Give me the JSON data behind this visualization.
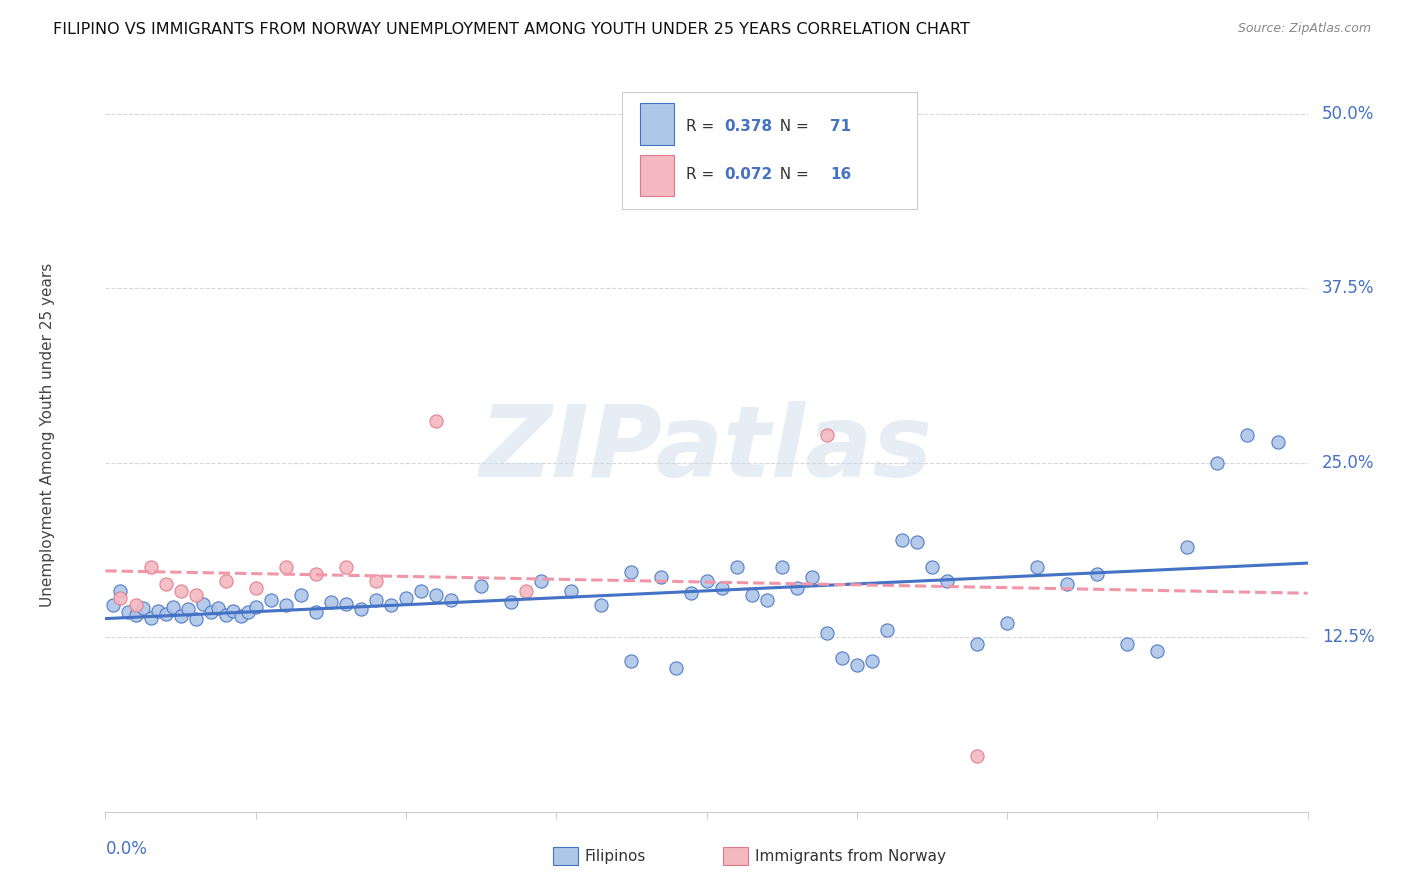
{
  "title": "FILIPINO VS IMMIGRANTS FROM NORWAY UNEMPLOYMENT AMONG YOUTH UNDER 25 YEARS CORRELATION CHART",
  "source": "Source: ZipAtlas.com",
  "ylabel": "Unemployment Among Youth under 25 years",
  "ytick_vals": [
    0.125,
    0.25,
    0.375,
    0.5
  ],
  "ytick_labels": [
    "12.5%",
    "25.0%",
    "37.5%",
    "50.0%"
  ],
  "xlim": [
    0.0,
    0.08
  ],
  "ylim": [
    0.0,
    0.54
  ],
  "filipinos_color": "#aec6e8",
  "filipinos_edge_color": "#4472c4",
  "norway_color": "#f4b8c1",
  "norway_edge_color": "#e07888",
  "filipinos_line_color": "#4472c4",
  "norway_line_color": "#f096a8",
  "axis_label_color": "#4472c4",
  "grid_color": "#d8d8d8",
  "background_color": "#ffffff",
  "watermark": "ZIPatlas",
  "legend_r1": "0.378",
  "legend_n1": "71",
  "legend_r2": "0.072",
  "legend_n2": "16",
  "filipinos_x": [
    0.0005,
    0.001,
    0.0015,
    0.002,
    0.0025,
    0.003,
    0.0035,
    0.004,
    0.0045,
    0.005,
    0.0055,
    0.006,
    0.0065,
    0.007,
    0.0075,
    0.008,
    0.0085,
    0.009,
    0.0095,
    0.01,
    0.011,
    0.012,
    0.013,
    0.014,
    0.015,
    0.016,
    0.017,
    0.018,
    0.019,
    0.02,
    0.021,
    0.022,
    0.023,
    0.025,
    0.027,
    0.029,
    0.031,
    0.033,
    0.035,
    0.037,
    0.039,
    0.041,
    0.043,
    0.045,
    0.047,
    0.049,
    0.051,
    0.053,
    0.055,
    0.035,
    0.038,
    0.04,
    0.042,
    0.044,
    0.046,
    0.048,
    0.05,
    0.052,
    0.054,
    0.056,
    0.058,
    0.06,
    0.062,
    0.064,
    0.066,
    0.068,
    0.07,
    0.072,
    0.074,
    0.076,
    0.078
  ],
  "filipinos_y": [
    0.148,
    0.158,
    0.143,
    0.141,
    0.146,
    0.139,
    0.144,
    0.142,
    0.147,
    0.14,
    0.145,
    0.138,
    0.149,
    0.143,
    0.146,
    0.141,
    0.144,
    0.14,
    0.143,
    0.147,
    0.152,
    0.148,
    0.155,
    0.143,
    0.15,
    0.149,
    0.145,
    0.152,
    0.148,
    0.153,
    0.158,
    0.155,
    0.152,
    0.162,
    0.15,
    0.165,
    0.158,
    0.148,
    0.172,
    0.168,
    0.157,
    0.16,
    0.155,
    0.175,
    0.168,
    0.11,
    0.108,
    0.195,
    0.175,
    0.108,
    0.103,
    0.165,
    0.175,
    0.152,
    0.16,
    0.128,
    0.105,
    0.13,
    0.193,
    0.165,
    0.12,
    0.135,
    0.175,
    0.163,
    0.17,
    0.12,
    0.115,
    0.19,
    0.25,
    0.27,
    0.265
  ],
  "norway_x": [
    0.001,
    0.002,
    0.003,
    0.004,
    0.005,
    0.006,
    0.008,
    0.01,
    0.012,
    0.014,
    0.016,
    0.018,
    0.022,
    0.028,
    0.048,
    0.058
  ],
  "norway_y": [
    0.153,
    0.148,
    0.175,
    0.163,
    0.158,
    0.155,
    0.165,
    0.16,
    0.175,
    0.17,
    0.175,
    0.165,
    0.28,
    0.158,
    0.27,
    0.04
  ]
}
